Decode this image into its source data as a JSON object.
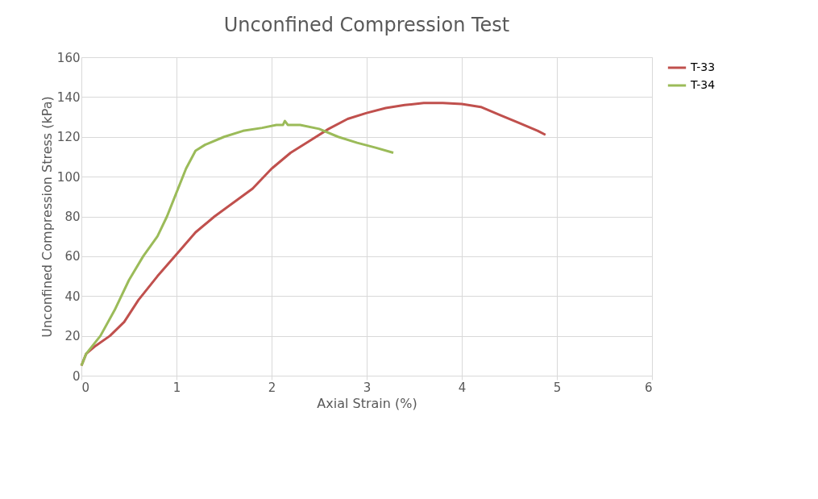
{
  "chart_data": {
    "type": "line",
    "title": "Unconfined Compression Test",
    "xlabel": "Axial Strain (%)",
    "ylabel": "Unconfined Compression Stress (kPa)",
    "xlim": [
      0,
      6
    ],
    "xticks": [
      0,
      1,
      2,
      3,
      4,
      5,
      6
    ],
    "ylim": [
      0,
      160
    ],
    "yticks": [
      0,
      20,
      40,
      60,
      80,
      100,
      120,
      140,
      160
    ],
    "grid": true,
    "legend": "right",
    "marker": "none",
    "line_style": "solid",
    "series": [
      {
        "name": "T-33",
        "color": "#c0504d",
        "x": [
          0,
          0.05,
          0.15,
          0.3,
          0.45,
          0.6,
          0.8,
          1.0,
          1.2,
          1.4,
          1.6,
          1.8,
          2.0,
          2.2,
          2.4,
          2.6,
          2.8,
          3.0,
          3.2,
          3.4,
          3.6,
          3.8,
          4.0,
          4.2,
          4.4,
          4.6,
          4.8,
          4.88
        ],
        "values": [
          5,
          11,
          15,
          20,
          27,
          38,
          50,
          61,
          72,
          80,
          87,
          94,
          104,
          112,
          118,
          124,
          129,
          132,
          134.5,
          136,
          137,
          137,
          136.5,
          135,
          131,
          127,
          123,
          121
        ]
      },
      {
        "name": "T-34",
        "color": "#9bbb59",
        "x": [
          0,
          0.05,
          0.2,
          0.35,
          0.5,
          0.65,
          0.8,
          0.9,
          1.0,
          1.1,
          1.2,
          1.3,
          1.5,
          1.7,
          1.9,
          2.05,
          2.12,
          2.14,
          2.17,
          2.3,
          2.5,
          2.7,
          2.9,
          3.1,
          3.28
        ],
        "values": [
          5,
          11,
          20,
          33,
          48,
          60,
          70,
          80,
          92,
          104,
          113,
          116,
          120,
          123,
          124.5,
          126,
          126,
          128,
          126,
          126,
          124,
          120,
          117,
          114.5,
          112
        ]
      }
    ]
  }
}
